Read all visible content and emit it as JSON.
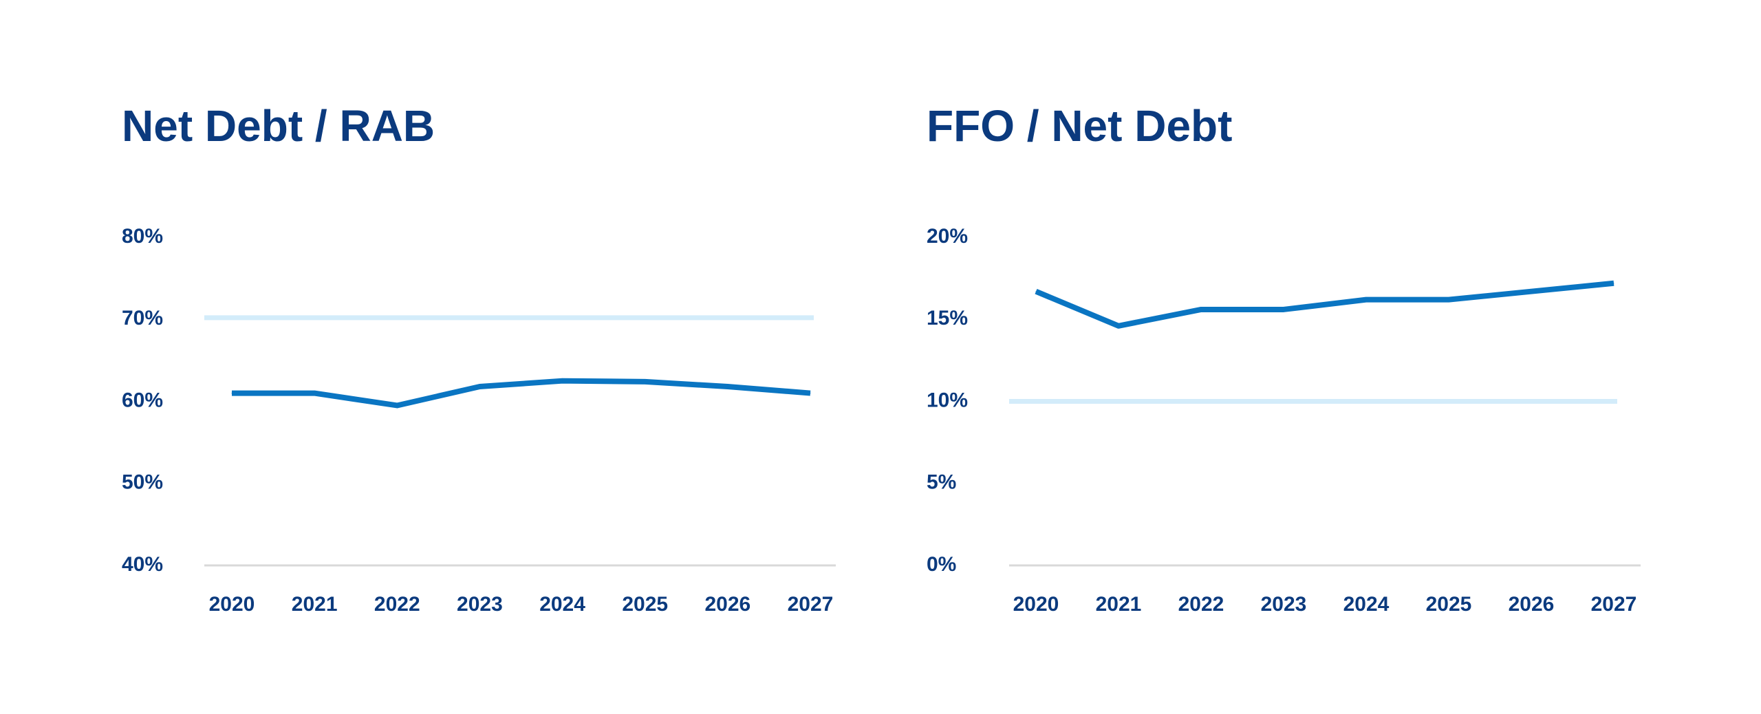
{
  "chart_data": [
    {
      "type": "line",
      "title": "Net Debt / RAB",
      "xlabel": "",
      "ylabel": "",
      "categories": [
        "2020",
        "2021",
        "2022",
        "2023",
        "2024",
        "2025",
        "2026",
        "2027"
      ],
      "series": [
        {
          "values": [
            61.0,
            61.0,
            59.5,
            61.8,
            62.5,
            62.4,
            61.8,
            61.0
          ],
          "color": "#0a75c2"
        }
      ],
      "reference_line": {
        "value": 70.2,
        "color": "#d3ecfa"
      },
      "ylim": [
        40,
        80
      ],
      "yticks": [
        80,
        70,
        60,
        50,
        40
      ],
      "ytick_labels": [
        "80%",
        "70%",
        "60%",
        "50%",
        "40%"
      ],
      "grid": false,
      "baseline_color": "#d9d9d9"
    },
    {
      "type": "line",
      "title": "FFO / Net Debt",
      "xlabel": "",
      "ylabel": "",
      "categories": [
        "2020",
        "2021",
        "2022",
        "2023",
        "2024",
        "2025",
        "2026",
        "2027"
      ],
      "series": [
        {
          "values": [
            16.7,
            14.6,
            15.6,
            15.6,
            16.2,
            16.2,
            16.7,
            17.2
          ],
          "color": "#0a75c2"
        }
      ],
      "reference_line": {
        "value": 10.0,
        "color": "#d3ecfa"
      },
      "ylim": [
        0,
        20
      ],
      "yticks": [
        20,
        15,
        10,
        5,
        0
      ],
      "ytick_labels": [
        "20%",
        "15%",
        "10%",
        "5%",
        "0%"
      ],
      "grid": false,
      "baseline_color": "#d9d9d9"
    }
  ]
}
